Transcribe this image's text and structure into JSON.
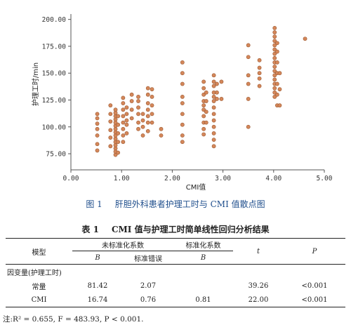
{
  "chart_data": {
    "type": "scatter",
    "xlabel": "CMI值",
    "ylabel": "护理工时/min",
    "xlim": [
      0,
      5
    ],
    "ylim": [
      60,
      205
    ],
    "xticks": [
      "0.00",
      "1.00",
      "2.00",
      "3.00",
      "4.00",
      "5.00"
    ],
    "yticks": [
      "75.00",
      "100.00",
      "125.00",
      "150.00",
      "175.00",
      "200.00"
    ],
    "grid": false,
    "point_color": "#d4875a",
    "points": [
      [
        0.52,
        78
      ],
      [
        0.52,
        84
      ],
      [
        0.52,
        92
      ],
      [
        0.52,
        98
      ],
      [
        0.52,
        103
      ],
      [
        0.52,
        108
      ],
      [
        0.52,
        112
      ],
      [
        0.78,
        82
      ],
      [
        0.78,
        90
      ],
      [
        0.78,
        97
      ],
      [
        0.78,
        105
      ],
      [
        0.78,
        112
      ],
      [
        0.78,
        120
      ],
      [
        0.88,
        74
      ],
      [
        0.88,
        77
      ],
      [
        0.88,
        80
      ],
      [
        0.88,
        83
      ],
      [
        0.88,
        86
      ],
      [
        0.88,
        89
      ],
      [
        0.88,
        92
      ],
      [
        0.88,
        95
      ],
      [
        0.88,
        98
      ],
      [
        0.88,
        101
      ],
      [
        0.88,
        104
      ],
      [
        0.88,
        107
      ],
      [
        0.88,
        110
      ],
      [
        0.88,
        113
      ],
      [
        0.88,
        116
      ],
      [
        0.93,
        76
      ],
      [
        0.93,
        86
      ],
      [
        0.93,
        94
      ],
      [
        0.93,
        102
      ],
      [
        0.93,
        110
      ],
      [
        1.03,
        86
      ],
      [
        1.03,
        92
      ],
      [
        1.03,
        98
      ],
      [
        1.03,
        104
      ],
      [
        1.03,
        110
      ],
      [
        1.03,
        116
      ],
      [
        1.03,
        122
      ],
      [
        1.03,
        127
      ],
      [
        1.1,
        94
      ],
      [
        1.1,
        102
      ],
      [
        1.1,
        106
      ],
      [
        1.1,
        112
      ],
      [
        1.1,
        118
      ],
      [
        1.2,
        108
      ],
      [
        1.2,
        116
      ],
      [
        1.2,
        124
      ],
      [
        1.2,
        130
      ],
      [
        1.33,
        98
      ],
      [
        1.33,
        104
      ],
      [
        1.33,
        112
      ],
      [
        1.33,
        118
      ],
      [
        1.33,
        124
      ],
      [
        1.33,
        128
      ],
      [
        1.42,
        92
      ],
      [
        1.42,
        100
      ],
      [
        1.42,
        106
      ],
      [
        1.42,
        112
      ],
      [
        1.52,
        96
      ],
      [
        1.52,
        104
      ],
      [
        1.52,
        110
      ],
      [
        1.52,
        116
      ],
      [
        1.52,
        122
      ],
      [
        1.52,
        130
      ],
      [
        1.52,
        136
      ],
      [
        1.6,
        104
      ],
      [
        1.6,
        112
      ],
      [
        1.6,
        120
      ],
      [
        1.6,
        128
      ],
      [
        1.6,
        135
      ],
      [
        1.78,
        92
      ],
      [
        1.78,
        98
      ],
      [
        2.2,
        86
      ],
      [
        2.2,
        92
      ],
      [
        2.2,
        102
      ],
      [
        2.2,
        112
      ],
      [
        2.2,
        122
      ],
      [
        2.2,
        128
      ],
      [
        2.2,
        140
      ],
      [
        2.2,
        150
      ],
      [
        2.2,
        160
      ],
      [
        2.62,
        93
      ],
      [
        2.62,
        98
      ],
      [
        2.62,
        104
      ],
      [
        2.62,
        110
      ],
      [
        2.62,
        116
      ],
      [
        2.62,
        120
      ],
      [
        2.62,
        124
      ],
      [
        2.62,
        130
      ],
      [
        2.62,
        136
      ],
      [
        2.62,
        142
      ],
      [
        2.67,
        104
      ],
      [
        2.67,
        114
      ],
      [
        2.67,
        124
      ],
      [
        2.67,
        132
      ],
      [
        2.82,
        82
      ],
      [
        2.82,
        88
      ],
      [
        2.82,
        94
      ],
      [
        2.82,
        100
      ],
      [
        2.82,
        106
      ],
      [
        2.82,
        112
      ],
      [
        2.82,
        118
      ],
      [
        2.82,
        124
      ],
      [
        2.82,
        128
      ],
      [
        2.82,
        132
      ],
      [
        2.82,
        138
      ],
      [
        2.82,
        142
      ],
      [
        2.82,
        148
      ],
      [
        2.88,
        126
      ],
      [
        2.88,
        132
      ],
      [
        2.88,
        140
      ],
      [
        2.97,
        126
      ],
      [
        2.97,
        142
      ],
      [
        3.5,
        100
      ],
      [
        3.5,
        126
      ],
      [
        3.5,
        140
      ],
      [
        3.5,
        148
      ],
      [
        3.5,
        165
      ],
      [
        3.5,
        176
      ],
      [
        3.72,
        138
      ],
      [
        3.72,
        145
      ],
      [
        3.72,
        150
      ],
      [
        3.72,
        155
      ],
      [
        3.72,
        162
      ],
      [
        4.02,
        128
      ],
      [
        4.02,
        132
      ],
      [
        4.02,
        136
      ],
      [
        4.02,
        140
      ],
      [
        4.02,
        144
      ],
      [
        4.02,
        148
      ],
      [
        4.02,
        152
      ],
      [
        4.02,
        156
      ],
      [
        4.02,
        160
      ],
      [
        4.02,
        164
      ],
      [
        4.02,
        168
      ],
      [
        4.02,
        172
      ],
      [
        4.02,
        176
      ],
      [
        4.02,
        180
      ],
      [
        4.02,
        184
      ],
      [
        4.02,
        188
      ],
      [
        4.02,
        192
      ],
      [
        4.07,
        120
      ],
      [
        4.07,
        130
      ],
      [
        4.07,
        140
      ],
      [
        4.07,
        150
      ],
      [
        4.07,
        160
      ],
      [
        4.07,
        170
      ],
      [
        4.07,
        178
      ],
      [
        4.12,
        120
      ],
      [
        4.12,
        135
      ],
      [
        4.12,
        150
      ],
      [
        4.62,
        182
      ]
    ]
  },
  "figure_caption": {
    "number": "图 1",
    "text": "肝胆外科患者护理工时与 CMI 值散点图"
  },
  "table": {
    "caption_number": "表 1",
    "caption_text": "CMI 值与护理工时简单线性回归分析结果",
    "header": {
      "model": "模型",
      "unstd": "未标准化系数",
      "std": "标准化系数",
      "t": "t",
      "p": "P",
      "b": "B",
      "se": "标准错误",
      "b2": "B"
    },
    "section_label": "因变量(护理工时)",
    "rows": [
      {
        "name": "常量",
        "b": "81.42",
        "se": "2.07",
        "std_b": "",
        "t": "39.26",
        "p": "<0.001"
      },
      {
        "name": "CMI",
        "b": "16.74",
        "se": "0.76",
        "std_b": "0.81",
        "t": "22.00",
        "p": "<0.001"
      }
    ]
  },
  "note": "注:R² = 0.655, F = 483.93, P < 0.001."
}
